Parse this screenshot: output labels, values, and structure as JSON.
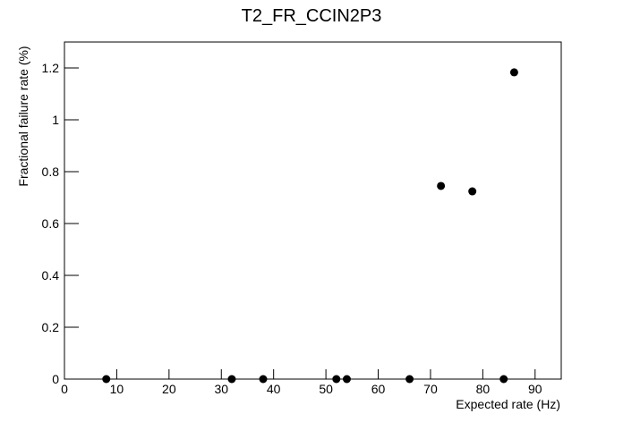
{
  "chart_data": {
    "type": "scatter",
    "title": "T2_FR_CCIN2P3",
    "x_label": "Expected rate (Hz)",
    "y_label": "Fractional failure rate (%)",
    "x": [
      8,
      32,
      38,
      52,
      54,
      66,
      72,
      78,
      84,
      86
    ],
    "values": [
      0,
      0,
      0,
      0,
      0,
      0,
      0.745,
      0.724,
      0,
      1.183
    ],
    "color": "#000000",
    "xlim": [
      0,
      95
    ],
    "ylim": [
      0,
      1.3
    ],
    "xticks": [
      0,
      10,
      20,
      30,
      40,
      50,
      60,
      70,
      80,
      90
    ],
    "yticks": [
      0,
      0.2,
      0.4,
      0.6,
      0.8,
      1,
      1.2
    ]
  }
}
